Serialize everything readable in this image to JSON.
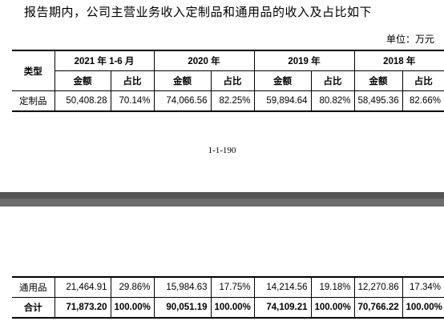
{
  "intro_text": "报告期内，公司主营业务收入定制品和通用品的收入及占比如下",
  "unit_label": "单位：万元",
  "table": {
    "col_type": "类型",
    "periods": [
      "2021 年 1-6 月",
      "2020 年",
      "2019 年",
      "2018 年"
    ],
    "sub_amount": "金额",
    "sub_ratio": "占比",
    "rows": [
      {
        "label": "定制品",
        "cells": [
          "50,408.28",
          "70.14%",
          "74,066.56",
          "82.25%",
          "59,894.64",
          "80.82%",
          "58,495.36",
          "82.66%"
        ]
      },
      {
        "label": "通用品",
        "cells": [
          "21,464.91",
          "29.86%",
          "15,984.63",
          "17.75%",
          "14,214.56",
          "19.18%",
          "12,270.86",
          "17.34%"
        ]
      },
      {
        "label": "合计",
        "cells": [
          "71,873.20",
          "100.00%",
          "90,051.19",
          "100.00%",
          "74,109.21",
          "100.00%",
          "70,766.22",
          "100.00%"
        ]
      }
    ]
  },
  "page_number": "1-1-190"
}
